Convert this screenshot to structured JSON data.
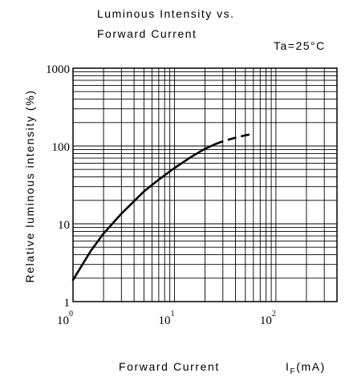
{
  "chart_data": {
    "type": "line",
    "title_line1": "Luminous Intensity vs.",
    "title_line2": "Forward Current",
    "condition": "Ta=25°C",
    "ylabel": "Relative luminous intensity (%)",
    "xlabel": "Forward Current",
    "xunit_symbol": "I",
    "xunit_sub": "F",
    "xunit_rest": "(mA)",
    "xscale": "log",
    "yscale": "log",
    "xlim": [
      1,
      400
    ],
    "ylim": [
      1,
      1000
    ],
    "grid": true,
    "x_ticks": [
      {
        "base": "10",
        "exp": "0",
        "value": 1
      },
      {
        "base": "10",
        "exp": "1",
        "value": 10
      },
      {
        "base": "10",
        "exp": "2",
        "value": 100
      }
    ],
    "y_ticks": [
      {
        "label": "1",
        "value": 1
      },
      {
        "label": "10",
        "value": 10
      },
      {
        "label": "100",
        "value": 100
      },
      {
        "label": "1000",
        "value": 1000
      }
    ],
    "series": [
      {
        "style": "solid",
        "x": [
          1,
          1.5,
          2,
          3,
          5,
          7,
          10,
          15,
          20,
          25
        ],
        "y": [
          1.9,
          4.5,
          7.5,
          13.5,
          26,
          37,
          52,
          74,
          92,
          105
        ]
      },
      {
        "style": "dashed",
        "x": [
          25,
          30,
          40,
          50,
          60
        ],
        "y": [
          105,
          115,
          128,
          137,
          143
        ]
      }
    ]
  }
}
